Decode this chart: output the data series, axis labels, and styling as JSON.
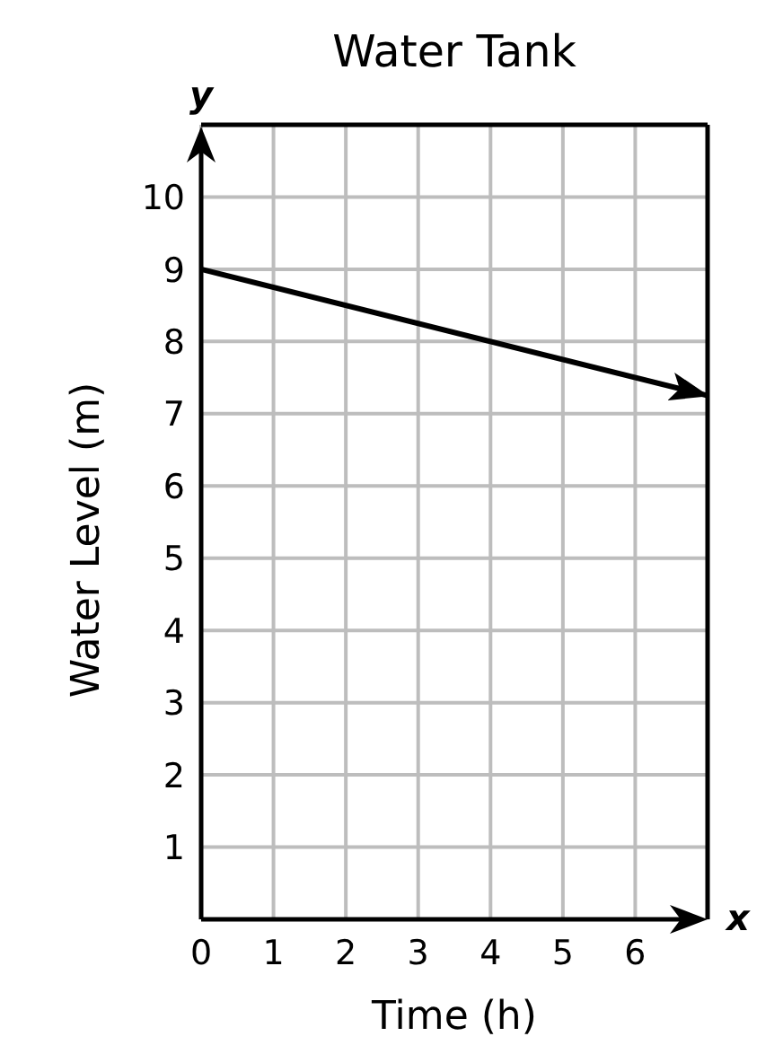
{
  "chart_data": {
    "type": "line",
    "title": "Water Tank",
    "xlabel": "Time (h)",
    "ylabel": "Water Level (m)",
    "annotations": [
      "y",
      "x"
    ],
    "x": [
      0,
      7
    ],
    "values": [
      9,
      7.25
    ],
    "color": "#000000",
    "xlim": [
      0,
      7
    ],
    "ylim": [
      0,
      11
    ],
    "xticks": [
      0,
      1,
      2,
      3,
      4,
      5,
      6
    ],
    "yticks": [
      1,
      2,
      3,
      4,
      5,
      6,
      7,
      8,
      9,
      10
    ],
    "grid": true
  }
}
